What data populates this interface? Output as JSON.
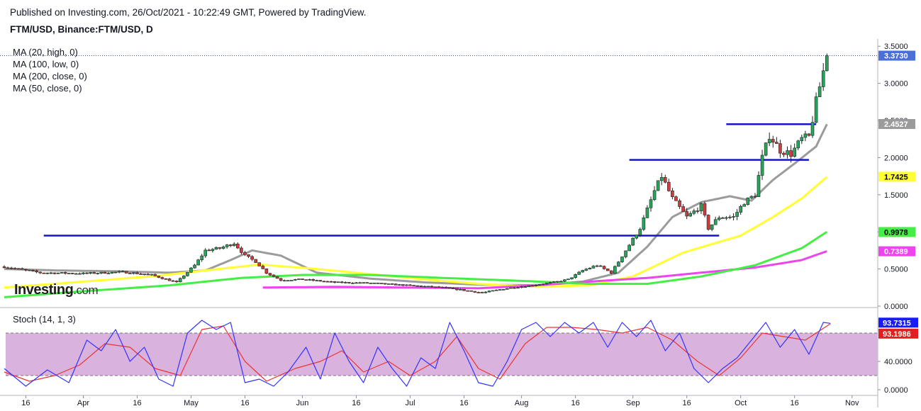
{
  "header": {
    "published": "Published on Investing.com, 26/Oct/2021 - 10:22:49 GMT, Powered by TradingView.",
    "symbol": "FTM/USD, Binance:FTM/USD, D"
  },
  "indicators": {
    "ma20": "MA (20, high, 0)",
    "ma100": "MA (100, low, 0)",
    "ma200": "MA (200, close, 0)",
    "ma50": "MA (50, close, 0)",
    "stoch": "Stoch (14, 1, 3)"
  },
  "logo": {
    "main": "Investing",
    "suffix": ".com"
  },
  "colors": {
    "up": "#26a65b",
    "down": "#d23b3b",
    "ma20": "#9b9b9b",
    "ma50": "#ffff33",
    "ma100": "#ee44ee",
    "ma200": "#44ee44",
    "level": "#1414c8",
    "stoch_k": "#3333ff",
    "stoch_d": "#ee3333",
    "stoch_band": "#d9b3dd"
  },
  "chart_data": [
    {
      "type": "candlestick",
      "y_axis_labels": [
        "3.5000",
        "3.0000",
        "2.5000",
        "2.0000",
        "1.5000",
        "1.0000",
        "0.5000",
        "0.0000"
      ],
      "y_ticks": [
        3.5,
        3.0,
        2.5,
        2.0,
        1.5,
        1.0,
        0.5,
        0.0
      ],
      "x_axis_labels": [
        "16",
        "Apr",
        "16",
        "May",
        "16",
        "Jun",
        "16",
        "Jul",
        "16",
        "Aug",
        "16",
        "Sep",
        "16",
        "Oct",
        "16",
        "Nov"
      ],
      "ylim": [
        0,
        3.55
      ],
      "x_range": [
        "2021-03-10",
        "2021-11-05"
      ],
      "last_price": "3.3730",
      "last_price_value": 3.373,
      "price_labels": [
        {
          "text": "2.4527",
          "value": 2.4527,
          "series": "MA (20, high, 0)"
        },
        {
          "text": "1.7425",
          "value": 1.7425,
          "series": "MA (50, close, 0)"
        },
        {
          "text": "0.9978",
          "value": 0.9978,
          "series": "MA (200, close, 0)"
        },
        {
          "text": "0.7389",
          "value": 0.7389,
          "series": "MA (100, low, 0)"
        }
      ],
      "horizontal_levels": [
        {
          "value": 0.95,
          "from": "2021-03-21",
          "to": "2021-09-25"
        },
        {
          "value": 1.97,
          "from": "2021-08-31",
          "to": "2021-10-20"
        },
        {
          "value": 2.45,
          "from": "2021-09-27",
          "to": "2021-10-22"
        },
        {
          "value": 0.25,
          "from": "2021-05-21",
          "to": "2021-06-26"
        }
      ],
      "close_path": [
        [
          "2021-03-10",
          0.53
        ],
        [
          "2021-03-20",
          0.45
        ],
        [
          "2021-04-01",
          0.44
        ],
        [
          "2021-04-12",
          0.46
        ],
        [
          "2021-04-20",
          0.42
        ],
        [
          "2021-04-27",
          0.32
        ],
        [
          "2021-05-02",
          0.55
        ],
        [
          "2021-05-05",
          0.75
        ],
        [
          "2021-05-09",
          0.78
        ],
        [
          "2021-05-13",
          0.85
        ],
        [
          "2021-05-16",
          0.68
        ],
        [
          "2021-05-19",
          0.6
        ],
        [
          "2021-05-22",
          0.45
        ],
        [
          "2021-05-26",
          0.35
        ],
        [
          "2021-06-01",
          0.36
        ],
        [
          "2021-06-10",
          0.32
        ],
        [
          "2021-06-20",
          0.31
        ],
        [
          "2021-06-30",
          0.28
        ],
        [
          "2021-07-10",
          0.25
        ],
        [
          "2021-07-15",
          0.22
        ],
        [
          "2021-07-21",
          0.18
        ],
        [
          "2021-07-28",
          0.24
        ],
        [
          "2021-08-04",
          0.28
        ],
        [
          "2021-08-10",
          0.32
        ],
        [
          "2021-08-14",
          0.36
        ],
        [
          "2021-08-18",
          0.48
        ],
        [
          "2021-08-22",
          0.55
        ],
        [
          "2021-08-26",
          0.45
        ],
        [
          "2021-08-30",
          0.75
        ],
        [
          "2021-09-03",
          1.05
        ],
        [
          "2021-09-07",
          1.55
        ],
        [
          "2021-09-09",
          1.75
        ],
        [
          "2021-09-12",
          1.45
        ],
        [
          "2021-09-16",
          1.2
        ],
        [
          "2021-09-20",
          1.35
        ],
        [
          "2021-09-22",
          1.05
        ],
        [
          "2021-09-25",
          1.2
        ],
        [
          "2021-09-29",
          1.2
        ],
        [
          "2021-10-02",
          1.4
        ],
        [
          "2021-10-05",
          1.5
        ],
        [
          "2021-10-07",
          2.0
        ],
        [
          "2021-10-09",
          2.3
        ],
        [
          "2021-10-12",
          2.1
        ],
        [
          "2021-10-15",
          2.05
        ],
        [
          "2021-10-18",
          2.25
        ],
        [
          "2021-10-20",
          2.28
        ],
        [
          "2021-10-22",
          2.75
        ],
        [
          "2021-10-25",
          3.37
        ]
      ],
      "series": [
        {
          "name": "MA (20, high, 0)",
          "points": [
            [
              "2021-03-10",
              0.5
            ],
            [
              "2021-03-25",
              0.48
            ],
            [
              "2021-04-10",
              0.47
            ],
            [
              "2021-04-25",
              0.45
            ],
            [
              "2021-05-05",
              0.48
            ],
            [
              "2021-05-12",
              0.62
            ],
            [
              "2021-05-18",
              0.75
            ],
            [
              "2021-05-26",
              0.68
            ],
            [
              "2021-06-05",
              0.45
            ],
            [
              "2021-06-20",
              0.37
            ],
            [
              "2021-07-05",
              0.32
            ],
            [
              "2021-07-20",
              0.29
            ],
            [
              "2021-08-05",
              0.28
            ],
            [
              "2021-08-18",
              0.33
            ],
            [
              "2021-08-28",
              0.45
            ],
            [
              "2021-09-05",
              0.8
            ],
            [
              "2021-09-12",
              1.2
            ],
            [
              "2021-09-20",
              1.4
            ],
            [
              "2021-09-28",
              1.48
            ],
            [
              "2021-10-04",
              1.42
            ],
            [
              "2021-10-10",
              1.7
            ],
            [
              "2021-10-16",
              1.92
            ],
            [
              "2021-10-22",
              2.15
            ],
            [
              "2021-10-25",
              2.45
            ]
          ]
        },
        {
          "name": "MA (50, close, 0)",
          "points": [
            [
              "2021-03-10",
              0.25
            ],
            [
              "2021-04-01",
              0.33
            ],
            [
              "2021-04-20",
              0.4
            ],
            [
              "2021-05-05",
              0.48
            ],
            [
              "2021-05-20",
              0.56
            ],
            [
              "2021-06-05",
              0.5
            ],
            [
              "2021-06-20",
              0.43
            ],
            [
              "2021-07-05",
              0.36
            ],
            [
              "2021-07-20",
              0.3
            ],
            [
              "2021-08-05",
              0.26
            ],
            [
              "2021-08-20",
              0.28
            ],
            [
              "2021-09-01",
              0.4
            ],
            [
              "2021-09-15",
              0.72
            ],
            [
              "2021-10-01",
              0.95
            ],
            [
              "2021-10-10",
              1.2
            ],
            [
              "2021-10-18",
              1.45
            ],
            [
              "2021-10-25",
              1.74
            ]
          ]
        },
        {
          "name": "MA (100, low, 0)",
          "points": [
            [
              "2021-05-21",
              0.25
            ],
            [
              "2021-06-10",
              0.26
            ],
            [
              "2021-07-01",
              0.25
            ],
            [
              "2021-07-20",
              0.24
            ],
            [
              "2021-08-05",
              0.28
            ],
            [
              "2021-08-20",
              0.33
            ],
            [
              "2021-09-05",
              0.38
            ],
            [
              "2021-09-20",
              0.45
            ],
            [
              "2021-10-05",
              0.52
            ],
            [
              "2021-10-18",
              0.62
            ],
            [
              "2021-10-25",
              0.74
            ]
          ]
        },
        {
          "name": "MA (200, close, 0)",
          "points": [
            [
              "2021-03-10",
              0.12
            ],
            [
              "2021-04-01",
              0.2
            ],
            [
              "2021-04-25",
              0.28
            ],
            [
              "2021-05-15",
              0.38
            ],
            [
              "2021-06-01",
              0.42
            ],
            [
              "2021-06-20",
              0.42
            ],
            [
              "2021-07-10",
              0.38
            ],
            [
              "2021-08-01",
              0.34
            ],
            [
              "2021-08-20",
              0.3
            ],
            [
              "2021-09-05",
              0.3
            ],
            [
              "2021-09-20",
              0.4
            ],
            [
              "2021-10-05",
              0.55
            ],
            [
              "2021-10-18",
              0.78
            ],
            [
              "2021-10-25",
              1.0
            ]
          ]
        }
      ]
    },
    {
      "type": "line",
      "title": "Stoch (14, 1, 3)",
      "y_axis_labels": [
        "40.0000",
        "0.0000"
      ],
      "y_ticks": [
        40,
        0
      ],
      "ylim": [
        -8,
        112
      ],
      "band": [
        20,
        80
      ],
      "last_values": [
        {
          "text": "93.7315",
          "value": 93.7315,
          "series": "%K"
        },
        {
          "text": "93.1986",
          "value": 93.1986,
          "series": "%D"
        }
      ],
      "k_path": [
        [
          "2021-03-10",
          30
        ],
        [
          "2021-03-16",
          5
        ],
        [
          "2021-03-22",
          28
        ],
        [
          "2021-03-28",
          10
        ],
        [
          "2021-04-02",
          70
        ],
        [
          "2021-04-06",
          55
        ],
        [
          "2021-04-10",
          85
        ],
        [
          "2021-04-14",
          40
        ],
        [
          "2021-04-18",
          60
        ],
        [
          "2021-04-22",
          15
        ],
        [
          "2021-04-26",
          5
        ],
        [
          "2021-04-30",
          80
        ],
        [
          "2021-05-04",
          98
        ],
        [
          "2021-05-08",
          85
        ],
        [
          "2021-05-12",
          95
        ],
        [
          "2021-05-16",
          10
        ],
        [
          "2021-05-20",
          15
        ],
        [
          "2021-05-24",
          5
        ],
        [
          "2021-05-28",
          25
        ],
        [
          "2021-06-02",
          60
        ],
        [
          "2021-06-06",
          15
        ],
        [
          "2021-06-10",
          80
        ],
        [
          "2021-06-14",
          40
        ],
        [
          "2021-06-18",
          10
        ],
        [
          "2021-06-22",
          60
        ],
        [
          "2021-06-26",
          30
        ],
        [
          "2021-06-30",
          5
        ],
        [
          "2021-07-04",
          45
        ],
        [
          "2021-07-08",
          30
        ],
        [
          "2021-07-12",
          95
        ],
        [
          "2021-07-16",
          55
        ],
        [
          "2021-07-20",
          10
        ],
        [
          "2021-07-24",
          5
        ],
        [
          "2021-07-28",
          40
        ],
        [
          "2021-08-01",
          85
        ],
        [
          "2021-08-05",
          95
        ],
        [
          "2021-08-09",
          75
        ],
        [
          "2021-08-13",
          95
        ],
        [
          "2021-08-17",
          80
        ],
        [
          "2021-08-21",
          95
        ],
        [
          "2021-08-25",
          60
        ],
        [
          "2021-08-29",
          95
        ],
        [
          "2021-09-02",
          75
        ],
        [
          "2021-09-06",
          98
        ],
        [
          "2021-09-10",
          55
        ],
        [
          "2021-09-14",
          80
        ],
        [
          "2021-09-18",
          30
        ],
        [
          "2021-09-22",
          10
        ],
        [
          "2021-09-26",
          30
        ],
        [
          "2021-09-30",
          45
        ],
        [
          "2021-10-04",
          70
        ],
        [
          "2021-10-08",
          95
        ],
        [
          "2021-10-12",
          60
        ],
        [
          "2021-10-16",
          85
        ],
        [
          "2021-10-20",
          50
        ],
        [
          "2021-10-24",
          95
        ],
        [
          "2021-10-26",
          93.7
        ]
      ],
      "d_path": [
        [
          "2021-03-10",
          25
        ],
        [
          "2021-03-17",
          12
        ],
        [
          "2021-03-24",
          20
        ],
        [
          "2021-03-31",
          35
        ],
        [
          "2021-04-07",
          65
        ],
        [
          "2021-04-14",
          60
        ],
        [
          "2021-04-21",
          30
        ],
        [
          "2021-04-28",
          20
        ],
        [
          "2021-05-04",
          85
        ],
        [
          "2021-05-10",
          90
        ],
        [
          "2021-05-16",
          40
        ],
        [
          "2021-05-22",
          12
        ],
        [
          "2021-05-30",
          30
        ],
        [
          "2021-06-06",
          40
        ],
        [
          "2021-06-12",
          55
        ],
        [
          "2021-06-18",
          25
        ],
        [
          "2021-06-25",
          40
        ],
        [
          "2021-07-01",
          20
        ],
        [
          "2021-07-08",
          40
        ],
        [
          "2021-07-14",
          75
        ],
        [
          "2021-07-20",
          30
        ],
        [
          "2021-07-26",
          15
        ],
        [
          "2021-08-02",
          65
        ],
        [
          "2021-08-08",
          88
        ],
        [
          "2021-08-15",
          88
        ],
        [
          "2021-08-22",
          85
        ],
        [
          "2021-08-29",
          80
        ],
        [
          "2021-09-05",
          88
        ],
        [
          "2021-09-12",
          70
        ],
        [
          "2021-09-19",
          40
        ],
        [
          "2021-09-25",
          20
        ],
        [
          "2021-10-01",
          45
        ],
        [
          "2021-10-07",
          80
        ],
        [
          "2021-10-13",
          75
        ],
        [
          "2021-10-19",
          70
        ],
        [
          "2021-10-26",
          93.2
        ]
      ]
    }
  ]
}
